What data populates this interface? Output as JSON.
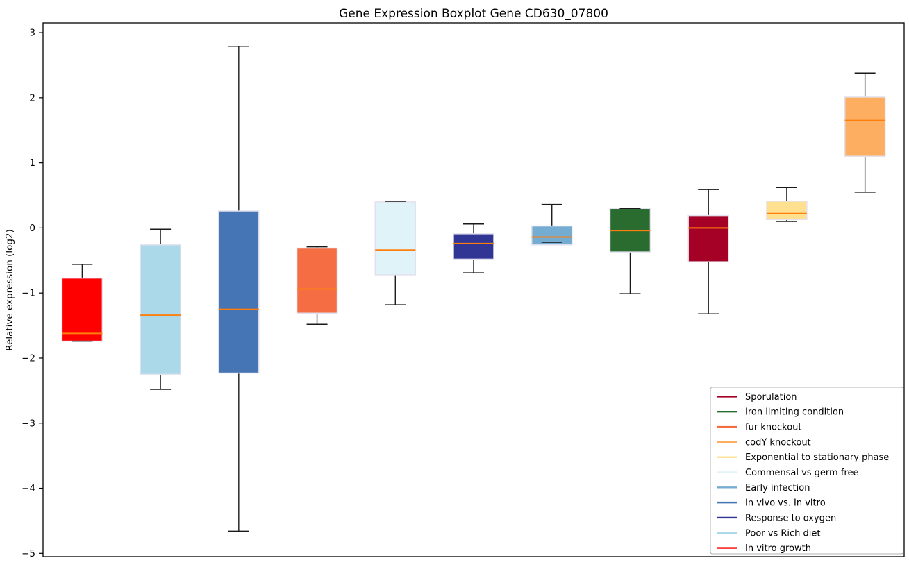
{
  "chart_data": {
    "type": "boxplot",
    "title": "Gene Expression Boxplot Gene CD630_07800",
    "xlabel": "",
    "ylabel": "Relative expression (log2)",
    "ylim": [
      -5.05,
      3.15
    ],
    "yticks": [
      3,
      2,
      1,
      0,
      -1,
      -2,
      -3,
      -4,
      -5
    ],
    "x_tick_labels": [],
    "grid": false,
    "background_color": "#ffffff",
    "median_color": "#ff7f0e",
    "whisker_color": "#1a1a1a",
    "box_edge_color": "#e3e1ee",
    "legend_position": "lower right",
    "series": [
      {
        "name": "In vitro growth",
        "color": "#ff0000",
        "whisker_low": -1.74,
        "q1": -1.74,
        "median": -1.62,
        "q3": -0.77,
        "whisker_high": -0.56
      },
      {
        "name": "Poor vs Rich diet",
        "color": "#abd9e9",
        "whisker_low": -2.48,
        "q1": -2.25,
        "median": -1.34,
        "q3": -0.26,
        "whisker_high": -0.02
      },
      {
        "name": "In vivo vs. In vitro",
        "color": "#4575b4",
        "whisker_low": -4.66,
        "q1": -2.23,
        "median": -1.25,
        "q3": 0.26,
        "whisker_high": 2.79
      },
      {
        "name": "fur knockout",
        "color": "#f46d43",
        "whisker_low": -1.48,
        "q1": -1.31,
        "median": -0.94,
        "q3": -0.31,
        "whisker_high": -0.29
      },
      {
        "name": "Commensal vs germ free",
        "color": "#e0f3f8",
        "whisker_low": -1.18,
        "q1": -0.72,
        "median": -0.34,
        "q3": 0.4,
        "whisker_high": 0.41
      },
      {
        "name": "Response to oxygen",
        "color": "#313695",
        "whisker_low": -0.69,
        "q1": -0.48,
        "median": -0.24,
        "q3": -0.09,
        "whisker_high": 0.06
      },
      {
        "name": "Early infection",
        "color": "#74add1",
        "whisker_low": -0.22,
        "q1": -0.26,
        "median": -0.14,
        "q3": 0.03,
        "whisker_high": 0.36
      },
      {
        "name": "Iron limiting condition",
        "color": "#2a6b2f",
        "whisker_low": -1.01,
        "q1": -0.37,
        "median": -0.04,
        "q3": 0.3,
        "whisker_high": 0.3
      },
      {
        "name": "Sporulation",
        "color": "#a50026",
        "whisker_low": -1.32,
        "q1": -0.52,
        "median": 0.0,
        "q3": 0.19,
        "whisker_high": 0.59
      },
      {
        "name": "Exponential to stationary phase",
        "color": "#fee090",
        "whisker_low": 0.1,
        "q1": 0.13,
        "median": 0.22,
        "q3": 0.41,
        "whisker_high": 0.62
      },
      {
        "name": "codY knockout",
        "color": "#fdae61",
        "whisker_low": 0.55,
        "q1": 1.1,
        "median": 1.65,
        "q3": 2.01,
        "whisker_high": 2.38
      }
    ],
    "legend": [
      {
        "label": "Sporulation",
        "color": "#a50026"
      },
      {
        "label": "Iron limiting condition",
        "color": "#2a6b2f"
      },
      {
        "label": "fur knockout",
        "color": "#f46d43"
      },
      {
        "label": "codY knockout",
        "color": "#fdae61"
      },
      {
        "label": "Exponential to stationary phase",
        "color": "#fee090"
      },
      {
        "label": "Commensal vs germ free",
        "color": "#e0f3f8"
      },
      {
        "label": "Early infection",
        "color": "#74add1"
      },
      {
        "label": "In vivo vs. In vitro",
        "color": "#4575b4"
      },
      {
        "label": "Response to oxygen",
        "color": "#313695"
      },
      {
        "label": "Poor vs Rich diet",
        "color": "#abd9e9"
      },
      {
        "label": "In vitro growth",
        "color": "#ff0000"
      }
    ]
  }
}
